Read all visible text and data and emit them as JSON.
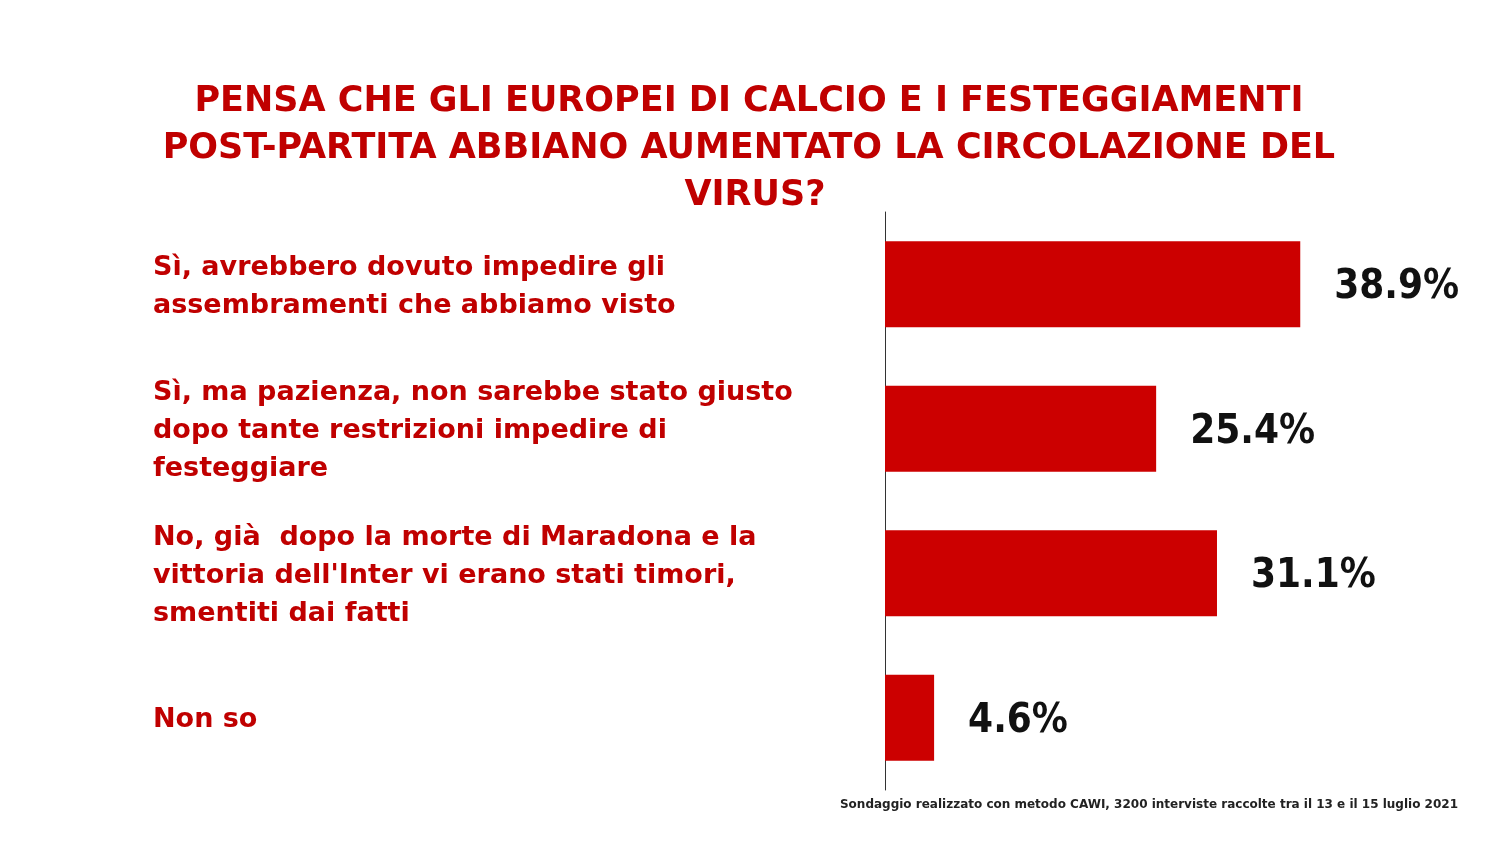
{
  "chart_data": {
    "type": "bar",
    "orientation": "horizontal",
    "title": "PENSA CHE GLI EUROPEI DI CALCIO E I FESTEGGIAMENTI POST-PARTITA ABBIANO AUMENTATO LA CIRCOLAZIONE DEL VIRUS?",
    "categories": [
      "Sì, avrebbero dovuto impedire gli assembramenti che abbiamo visto",
      "Sì, ma pazienza, non sarebbe stato giusto dopo tante restrizioni impedire di festeggiare",
      "No, già  dopo la morte di Maradona e la vittoria dell'Inter vi erano stati timori, smentiti dai fatti",
      "Non so"
    ],
    "values": [
      38.9,
      25.4,
      31.1,
      4.6
    ],
    "value_labels": [
      "38.9%",
      "25.4%",
      "31.1%",
      "4.6%"
    ],
    "color": "#cc0000",
    "annotations": [
      "Sondaggio realizzato con metodo CAWI, 3200 interviste raccolte tra il 13 e il 15 luglio 2021"
    ]
  }
}
